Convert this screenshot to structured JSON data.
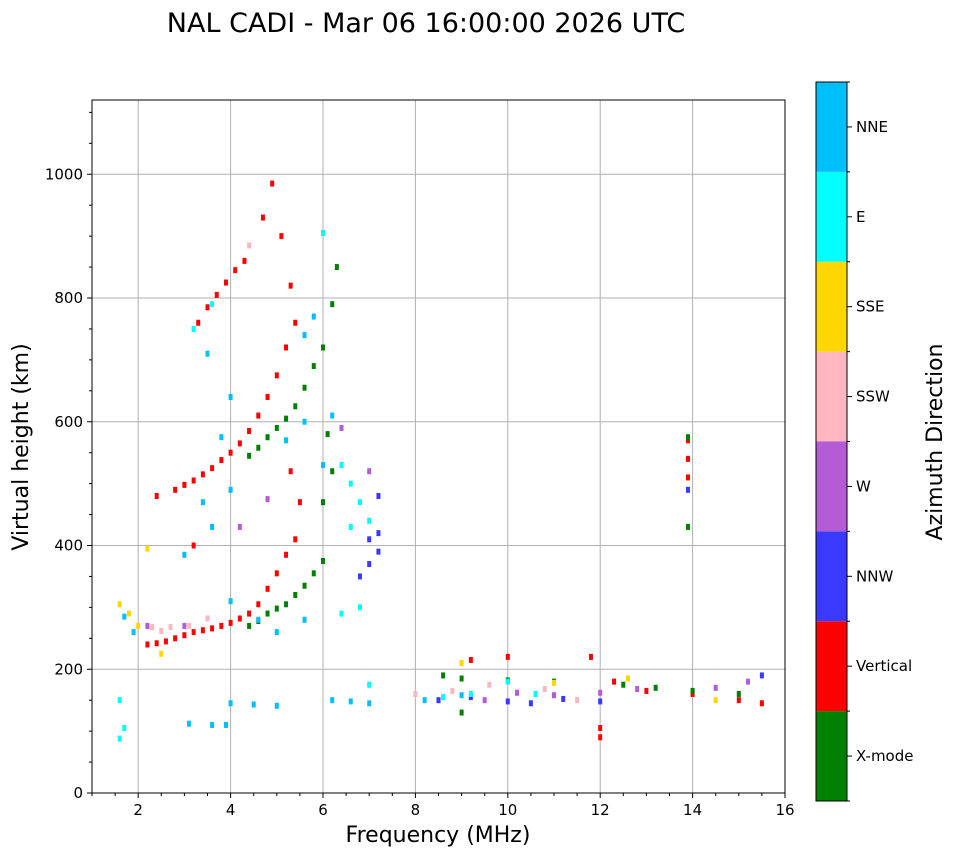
{
  "chart_data": {
    "type": "scatter",
    "title": "NAL CADI - Mar 06 16:00:00 2026 UTC",
    "xlabel": "Frequency (MHz)",
    "ylabel": "Virtual height (km)",
    "xlim": [
      1,
      16
    ],
    "ylim": [
      0,
      1120
    ],
    "xticks": [
      2,
      4,
      6,
      8,
      10,
      12,
      14,
      16
    ],
    "yticks": [
      0,
      200,
      400,
      600,
      800,
      1000
    ],
    "grid": true,
    "colorbar": {
      "title": "Azimuth Direction",
      "categories": [
        {
          "name": "X-mode",
          "color": "#008000"
        },
        {
          "name": "Vertical",
          "color": "#ff0000"
        },
        {
          "name": "NNW",
          "color": "#3a3aff"
        },
        {
          "name": "W",
          "color": "#b45cd6"
        },
        {
          "name": "SSW",
          "color": "#ffb6c1"
        },
        {
          "name": "SSE",
          "color": "#ffd700"
        },
        {
          "name": "E",
          "color": "#00ffff"
        },
        {
          "name": "NNE",
          "color": "#00bfff"
        }
      ]
    },
    "series": [
      {
        "name": "Vertical",
        "points": [
          [
            2.2,
            240
          ],
          [
            2.4,
            242
          ],
          [
            2.6,
            245
          ],
          [
            2.8,
            250
          ],
          [
            3.0,
            255
          ],
          [
            3.2,
            260
          ],
          [
            3.4,
            263
          ],
          [
            3.6,
            266
          ],
          [
            3.8,
            270
          ],
          [
            4.0,
            275
          ],
          [
            4.2,
            282
          ],
          [
            4.4,
            290
          ],
          [
            4.6,
            305
          ],
          [
            4.8,
            330
          ],
          [
            5.0,
            355
          ],
          [
            5.2,
            385
          ],
          [
            5.4,
            410
          ],
          [
            2.4,
            480
          ],
          [
            2.8,
            490
          ],
          [
            3.0,
            498
          ],
          [
            3.2,
            505
          ],
          [
            3.4,
            515
          ],
          [
            3.6,
            525
          ],
          [
            3.8,
            538
          ],
          [
            4.0,
            550
          ],
          [
            4.2,
            565
          ],
          [
            4.4,
            585
          ],
          [
            4.6,
            610
          ],
          [
            4.8,
            640
          ],
          [
            5.0,
            675
          ],
          [
            5.2,
            720
          ],
          [
            5.4,
            760
          ],
          [
            3.3,
            760
          ],
          [
            3.5,
            785
          ],
          [
            3.7,
            805
          ],
          [
            3.9,
            825
          ],
          [
            4.1,
            845
          ],
          [
            4.3,
            860
          ],
          [
            4.7,
            930
          ],
          [
            4.9,
            985
          ],
          [
            5.1,
            900
          ],
          [
            5.3,
            820
          ],
          [
            5.3,
            520
          ],
          [
            5.5,
            470
          ],
          [
            3.2,
            400
          ],
          [
            9.2,
            215
          ],
          [
            10.0,
            220
          ],
          [
            11.8,
            220
          ],
          [
            12.3,
            180
          ],
          [
            13.0,
            165
          ],
          [
            14.0,
            160
          ],
          [
            15.0,
            150
          ],
          [
            15.5,
            145
          ],
          [
            12.0,
            105
          ],
          [
            12.0,
            90
          ],
          [
            13.9,
            570
          ],
          [
            13.9,
            540
          ],
          [
            13.9,
            510
          ]
        ]
      },
      {
        "name": "X-mode",
        "points": [
          [
            4.4,
            270
          ],
          [
            4.6,
            278
          ],
          [
            4.8,
            290
          ],
          [
            5.0,
            298
          ],
          [
            5.2,
            305
          ],
          [
            5.4,
            320
          ],
          [
            5.6,
            335
          ],
          [
            5.8,
            355
          ],
          [
            6.0,
            375
          ],
          [
            6.0,
            470
          ],
          [
            6.2,
            520
          ],
          [
            4.4,
            545
          ],
          [
            4.6,
            558
          ],
          [
            4.8,
            575
          ],
          [
            5.0,
            590
          ],
          [
            5.2,
            605
          ],
          [
            5.4,
            625
          ],
          [
            5.6,
            655
          ],
          [
            5.8,
            690
          ],
          [
            6.0,
            720
          ],
          [
            6.2,
            790
          ],
          [
            6.3,
            850
          ],
          [
            6.1,
            580
          ],
          [
            8.6,
            190
          ],
          [
            9.0,
            185
          ],
          [
            10.0,
            182
          ],
          [
            11.0,
            180
          ],
          [
            12.5,
            175
          ],
          [
            13.2,
            170
          ],
          [
            14.0,
            165
          ],
          [
            15.0,
            160
          ],
          [
            13.9,
            430
          ],
          [
            13.9,
            575
          ],
          [
            9.0,
            130
          ]
        ]
      },
      {
        "name": "NNW",
        "points": [
          [
            6.8,
            350
          ],
          [
            7.0,
            370
          ],
          [
            7.2,
            390
          ],
          [
            7.0,
            410
          ],
          [
            7.2,
            420
          ],
          [
            7.2,
            480
          ],
          [
            8.5,
            150
          ],
          [
            9.2,
            155
          ],
          [
            10.0,
            148
          ],
          [
            10.5,
            145
          ],
          [
            11.2,
            152
          ],
          [
            12.0,
            148
          ],
          [
            13.9,
            490
          ],
          [
            15.5,
            190
          ]
        ]
      },
      {
        "name": "W",
        "points": [
          [
            9.5,
            150
          ],
          [
            10.2,
            162
          ],
          [
            11.0,
            158
          ],
          [
            12.0,
            162
          ],
          [
            12.8,
            168
          ],
          [
            14.5,
            170
          ],
          [
            15.2,
            180
          ],
          [
            4.2,
            430
          ],
          [
            4.8,
            475
          ],
          [
            6.4,
            590
          ],
          [
            7.0,
            520
          ],
          [
            2.2,
            270
          ],
          [
            3.0,
            270
          ]
        ]
      },
      {
        "name": "SSW",
        "points": [
          [
            2.3,
            268
          ],
          [
            2.5,
            262
          ],
          [
            2.7,
            268
          ],
          [
            3.1,
            270
          ],
          [
            3.5,
            282
          ],
          [
            8.0,
            160
          ],
          [
            8.8,
            165
          ],
          [
            9.6,
            175
          ],
          [
            10.8,
            168
          ],
          [
            11.5,
            150
          ],
          [
            4.4,
            885
          ]
        ]
      },
      {
        "name": "SSE",
        "points": [
          [
            1.6,
            305
          ],
          [
            1.8,
            290
          ],
          [
            2.0,
            270
          ],
          [
            2.2,
            395
          ],
          [
            9.0,
            210
          ],
          [
            11.0,
            178
          ],
          [
            12.6,
            185
          ],
          [
            14.5,
            150
          ],
          [
            2.5,
            225
          ]
        ]
      },
      {
        "name": "E",
        "points": [
          [
            6.4,
            290
          ],
          [
            6.8,
            300
          ],
          [
            6.6,
            430
          ],
          [
            6.6,
            500
          ],
          [
            6.8,
            470
          ],
          [
            7.0,
            440
          ],
          [
            7.0,
            175
          ],
          [
            8.6,
            155
          ],
          [
            9.2,
            160
          ],
          [
            10.0,
            180
          ],
          [
            10.6,
            160
          ],
          [
            3.2,
            750
          ],
          [
            3.6,
            790
          ],
          [
            6.4,
            530
          ],
          [
            6.0,
            905
          ],
          [
            1.6,
            150
          ],
          [
            1.7,
            105
          ],
          [
            1.6,
            88
          ]
        ]
      },
      {
        "name": "NNE",
        "points": [
          [
            1.7,
            285
          ],
          [
            1.9,
            260
          ],
          [
            3.0,
            385
          ],
          [
            3.4,
            470
          ],
          [
            3.6,
            430
          ],
          [
            4.0,
            490
          ],
          [
            4.0,
            310
          ],
          [
            4.6,
            280
          ],
          [
            5.0,
            260
          ],
          [
            5.6,
            280
          ],
          [
            5.2,
            570
          ],
          [
            5.6,
            600
          ],
          [
            6.2,
            150
          ],
          [
            6.6,
            148
          ],
          [
            7.0,
            145
          ],
          [
            8.2,
            150
          ],
          [
            9.0,
            158
          ],
          [
            4.0,
            145
          ],
          [
            4.5,
            143
          ],
          [
            5.0,
            141
          ],
          [
            3.6,
            110
          ],
          [
            3.9,
            110
          ],
          [
            3.1,
            112
          ],
          [
            3.5,
            710
          ],
          [
            4.0,
            640
          ],
          [
            5.6,
            740
          ],
          [
            5.8,
            770
          ],
          [
            3.8,
            575
          ],
          [
            6.0,
            530
          ],
          [
            6.2,
            610
          ]
        ]
      }
    ]
  }
}
